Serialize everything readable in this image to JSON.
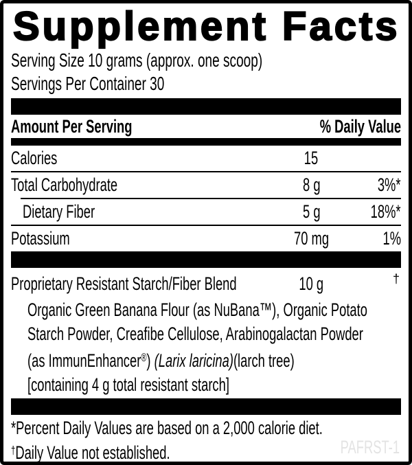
{
  "title": "Supplement Facts",
  "serving_size": "Serving Size 10 grams (approx. one scoop)",
  "servings_per_container": "Servings Per Container 30",
  "header": {
    "left": "Amount Per Serving",
    "right": "% Daily Value"
  },
  "rows": [
    {
      "name": "Calories",
      "amount": "15",
      "dv": "",
      "indent": false
    },
    {
      "name": "Total Carbohydrate",
      "amount": "8 g",
      "dv": "3%*",
      "indent": false
    },
    {
      "name": "Dietary Fiber",
      "amount": "5 g",
      "dv": "18%*",
      "indent": true
    },
    {
      "name": "Potassium",
      "amount": "70 mg",
      "dv": "1%",
      "indent": false
    }
  ],
  "blend": {
    "name": "Proprietary Resistant Starch/Fiber Blend",
    "amount": "10 g",
    "dv_symbol": "†",
    "detail_lines": [
      [
        {
          "t": "Organic Green Banana Flour (as NuBana™), Organic Potato"
        }
      ],
      [
        {
          "t": "Starch Powder, Creafibe Cellulose, Arabinogalactan Powder"
        }
      ],
      [
        {
          "t": "(as ImmunEnhancer"
        },
        {
          "t": "®",
          "s": "sup"
        },
        {
          "t": ") "
        },
        {
          "t": "(Larix laricina)",
          "s": "italic"
        },
        {
          "t": "(larch tree)"
        }
      ],
      [
        {
          "t": "[containing 4 g total resistant starch]"
        }
      ]
    ]
  },
  "footnotes": {
    "note1": "*Percent Daily Values are based on a 2,000 calorie diet.",
    "note2_symbol": "†",
    "note2": "Daily Value not established."
  },
  "code": "PAFRST-1",
  "colors": {
    "text": "#000000",
    "bar": "#000000",
    "code_gray": "#e3e3e3"
  }
}
